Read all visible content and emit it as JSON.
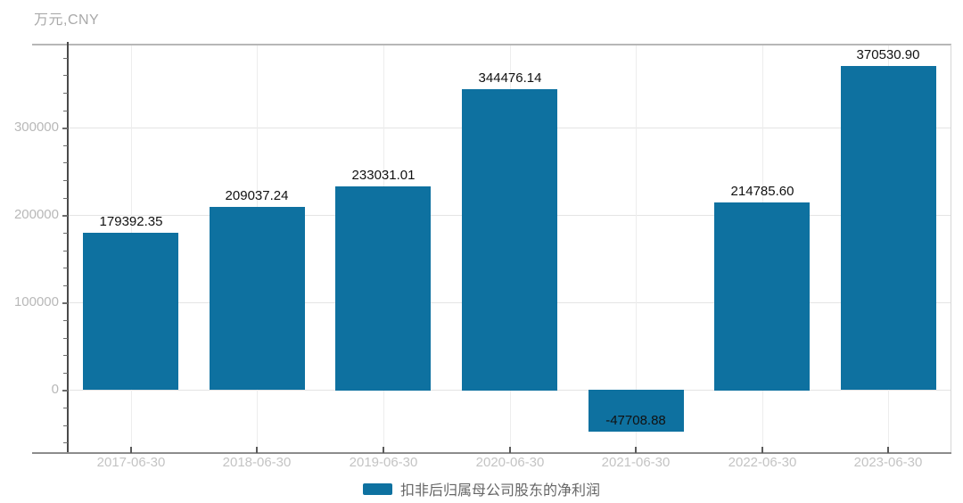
{
  "chart_data": {
    "type": "bar",
    "title": "",
    "unit_label": "万元,CNY",
    "categories": [
      "2017-06-30",
      "2018-06-30",
      "2019-06-30",
      "2020-06-30",
      "2021-06-30",
      "2022-06-30",
      "2023-06-30"
    ],
    "series": [
      {
        "name": "扣非后归属母公司股东的净利润",
        "values": [
          179392.35,
          209037.24,
          233031.01,
          344476.14,
          -47708.88,
          214785.6,
          370530.9
        ]
      }
    ],
    "value_labels": [
      "179392.35",
      "209037.24",
      "233031.01",
      "344476.14",
      "-47708.88",
      "214785.60",
      "370530.90"
    ],
    "xlabel": "",
    "ylabel": "万元,CNY",
    "ylim": [
      -71900,
      395000
    ],
    "yticks": [
      0,
      100000,
      200000,
      300000
    ],
    "ytick_labels": [
      "0",
      "100000",
      "200000",
      "300000"
    ],
    "y_minor_step": 20000,
    "grid": true,
    "legend_position": "bottom",
    "colors": {
      "bar": "#0e71a0",
      "value_label": "#111111",
      "tick_label": "#c4c4c4",
      "unit_label": "#a9a9a9",
      "legend_text": "#666666"
    }
  }
}
